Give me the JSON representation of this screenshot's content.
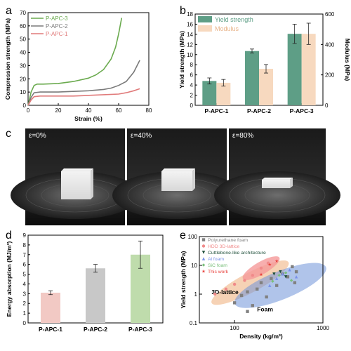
{
  "panels": {
    "a": "a",
    "b": "b",
    "c": "c",
    "d": "d",
    "e": "e"
  },
  "colors": {
    "apc1": "#e07a7a",
    "apc2": "#7a7a7a",
    "apc3": "#6aaa4e",
    "yield_bar": "#5e9e86",
    "modulus_bar": "#f7d9bf",
    "d_apc1": "#f2c9c4",
    "d_apc2": "#c8c8c8",
    "d_apc3": "#bfdcac"
  },
  "photos": {
    "labels": [
      "ε=0%",
      "ε=40%",
      "ε=80%"
    ],
    "compression": [
      0,
      0.4,
      0.8
    ]
  },
  "chart_data": [
    {
      "panel": "a",
      "type": "line",
      "xlabel": "Strain (%)",
      "ylabel": "Compression strength (MPa)",
      "xlim": [
        0,
        80
      ],
      "ylim": [
        0,
        70
      ],
      "xticks": [
        0,
        20,
        40,
        60,
        80
      ],
      "yticks": [
        0,
        10,
        20,
        30,
        40,
        50,
        60,
        70
      ],
      "legend": "top-left",
      "series": [
        {
          "name": "P-APC-3",
          "color": "#6aaa4e",
          "points": [
            [
              0,
              0
            ],
            [
              2,
              10
            ],
            [
              4,
              15
            ],
            [
              6,
              16
            ],
            [
              10,
              16
            ],
            [
              20,
              16.5
            ],
            [
              30,
              18
            ],
            [
              40,
              20.5
            ],
            [
              45,
              23
            ],
            [
              50,
              27
            ],
            [
              55,
              35
            ],
            [
              58,
              44
            ],
            [
              60,
              54
            ],
            [
              62,
              66
            ]
          ]
        },
        {
          "name": "P-APC-2",
          "color": "#7a7a7a",
          "points": [
            [
              0,
              0
            ],
            [
              2,
              6
            ],
            [
              4,
              9.5
            ],
            [
              8,
              10
            ],
            [
              20,
              10
            ],
            [
              30,
              10.5
            ],
            [
              40,
              11
            ],
            [
              50,
              12
            ],
            [
              55,
              13
            ],
            [
              60,
              15
            ],
            [
              65,
              18
            ],
            [
              70,
              25
            ],
            [
              74,
              34
            ]
          ]
        },
        {
          "name": "P-APC-1",
          "color": "#e07a7a",
          "points": [
            [
              0,
              0
            ],
            [
              2,
              4
            ],
            [
              4,
              6.5
            ],
            [
              8,
              7
            ],
            [
              20,
              7
            ],
            [
              30,
              7
            ],
            [
              40,
              7.5
            ],
            [
              50,
              8
            ],
            [
              60,
              8.5
            ],
            [
              65,
              9.5
            ],
            [
              70,
              11
            ],
            [
              74,
              12.5
            ]
          ]
        }
      ]
    },
    {
      "panel": "b",
      "type": "bar",
      "categories": [
        "P-APC-1",
        "P-APC-2",
        "P-APC-3"
      ],
      "ylabel": "Yield strength (MPa)",
      "y2label": "Modulus (MPa)",
      "ylim": [
        0,
        18
      ],
      "yticks": [
        0,
        2,
        4,
        6,
        8,
        10,
        12,
        14,
        16,
        18
      ],
      "y2lim": [
        0,
        600
      ],
      "y2ticks": [
        0,
        200,
        400,
        600
      ],
      "legend": "top-left",
      "series": [
        {
          "name": "Yield strength",
          "axis": "left",
          "color": "#5e9e86",
          "values": [
            4.8,
            10.7,
            14.1
          ],
          "errors": [
            0.6,
            0.4,
            1.9
          ]
        },
        {
          "name": "Modulus",
          "axis": "right",
          "color": "#f7d9bf",
          "values": [
            148,
            240,
            470
          ],
          "errors": [
            22,
            28,
            70
          ]
        }
      ]
    },
    {
      "panel": "d",
      "type": "bar",
      "categories": [
        "P-APC-1",
        "P-APC-2",
        "P-APC-3"
      ],
      "ylabel": "Energy absorption (MJ/m³)",
      "ylim": [
        0,
        9
      ],
      "yticks": [
        0,
        1,
        2,
        3,
        4,
        5,
        6,
        7,
        8,
        9
      ],
      "values": [
        3.1,
        5.6,
        7.0
      ],
      "errors": [
        0.2,
        0.4,
        1.4
      ],
      "colors": [
        "#f2c9c4",
        "#c8c8c8",
        "#bfdcac"
      ]
    },
    {
      "panel": "e",
      "type": "scatter",
      "xlabel": "Density (kg/m³)",
      "ylabel": "Yield strength (MPa)",
      "xscale": "log",
      "yscale": "log",
      "xlim": [
        40,
        1000
      ],
      "ylim": [
        0.1,
        100
      ],
      "xticks": [
        100,
        1000
      ],
      "xticklabels": [
        "100",
        "1000"
      ],
      "yticks": [
        0.1,
        1,
        10,
        100
      ],
      "yticklabels": [
        "0.1",
        "1",
        "10",
        "100"
      ],
      "legend": "top-left",
      "regions": [
        {
          "label": "3D-lattice",
          "color": "#f3c39c"
        },
        {
          "label": "Foam",
          "color": "#6f93d8"
        },
        {
          "label": "",
          "color": "#f59a9a"
        }
      ],
      "series": [
        {
          "name": "Polyurethane foam",
          "marker": "square",
          "color": "#808080",
          "points": [
            [
              100,
              0.5
            ],
            [
              120,
              0.9
            ],
            [
              140,
              1.2
            ],
            [
              160,
              0.4
            ],
            [
              180,
              1.5
            ],
            [
              200,
              2.5
            ],
            [
              230,
              0.8
            ],
            [
              260,
              3.5
            ],
            [
              300,
              2.0
            ],
            [
              350,
              5.0
            ],
            [
              400,
              4.0
            ],
            [
              450,
              9.0
            ],
            [
              500,
              6.0
            ],
            [
              480,
              2.5
            ],
            [
              140,
              0.25
            ]
          ]
        },
        {
          "name": "HDD 3D-lattice",
          "marker": "dot",
          "color": "#f08a8a",
          "points": [
            [
              60,
              1.0
            ],
            [
              80,
              1.5
            ],
            [
              100,
              2.2
            ],
            [
              130,
              3.0
            ],
            [
              160,
              4.5
            ],
            [
              200,
              8.0
            ],
            [
              240,
              12.0
            ]
          ]
        },
        {
          "name": "Cuttlebone-like architecture",
          "marker": "triangle-down",
          "color": "#1e4f3a",
          "points": [
            [
              280,
              5.0
            ],
            [
              330,
              6.0
            ],
            [
              380,
              4.0
            ]
          ]
        },
        {
          "name": "Al foam",
          "marker": "triangle-up",
          "color": "#7a92ea",
          "points": [
            [
              250,
              2.0
            ],
            [
              300,
              3.5
            ],
            [
              350,
              5.0
            ],
            [
              420,
              7.0
            ],
            [
              500,
              4.0
            ]
          ]
        },
        {
          "name": "SiC foam",
          "marker": "diamond",
          "color": "#79bf7a",
          "points": [
            [
              270,
              2.8
            ],
            [
              320,
              4.5
            ],
            [
              380,
              5.5
            ],
            [
              440,
              3.0
            ]
          ]
        },
        {
          "name": "This work",
          "marker": "star",
          "color": "#e8413c",
          "points": [
            [
              200,
              4.8
            ],
            [
              250,
              10.7
            ],
            [
              300,
              14.1
            ]
          ]
        }
      ]
    }
  ]
}
